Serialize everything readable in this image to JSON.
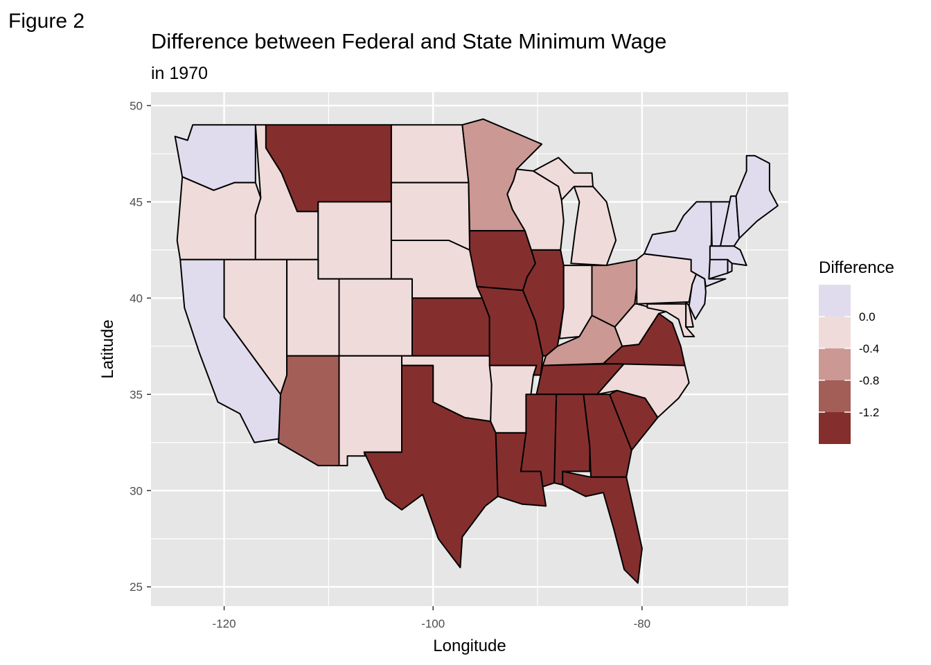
{
  "figure_label": "Figure 2",
  "map": {
    "title": "Difference between Federal and State Minimum Wage",
    "subtitle": "in 1970",
    "x_axis": {
      "label": "Longitude",
      "range": [
        -127,
        -66
      ],
      "ticks": [
        -120,
        -100,
        -80
      ],
      "tick_labels": [
        "-120",
        "-100",
        "-80"
      ],
      "minor_ticks": [
        -110,
        -90,
        -70
      ]
    },
    "y_axis": {
      "label": "Latitude",
      "range": [
        24,
        50.7
      ],
      "ticks": [
        25,
        30,
        35,
        40,
        45,
        50
      ],
      "tick_labels": [
        "25",
        "30",
        "35",
        "40",
        "45",
        "50"
      ],
      "minor_ticks": [
        27.5,
        32.5,
        37.5,
        42.5,
        47.5
      ]
    },
    "grid": true,
    "legend": {
      "title": "Difference",
      "placement": "right",
      "colors": [
        "#e0dcee",
        "#efdcda",
        "#cc9893",
        "#a35e58",
        "#842f2e"
      ],
      "labels": [
        "0.0",
        "-0.4",
        "-0.8",
        "-1.2"
      ]
    },
    "colors": {
      "panel_bg": "#e6e6e6",
      "grid": "#ffffff",
      "border": "#000000"
    }
  }
}
